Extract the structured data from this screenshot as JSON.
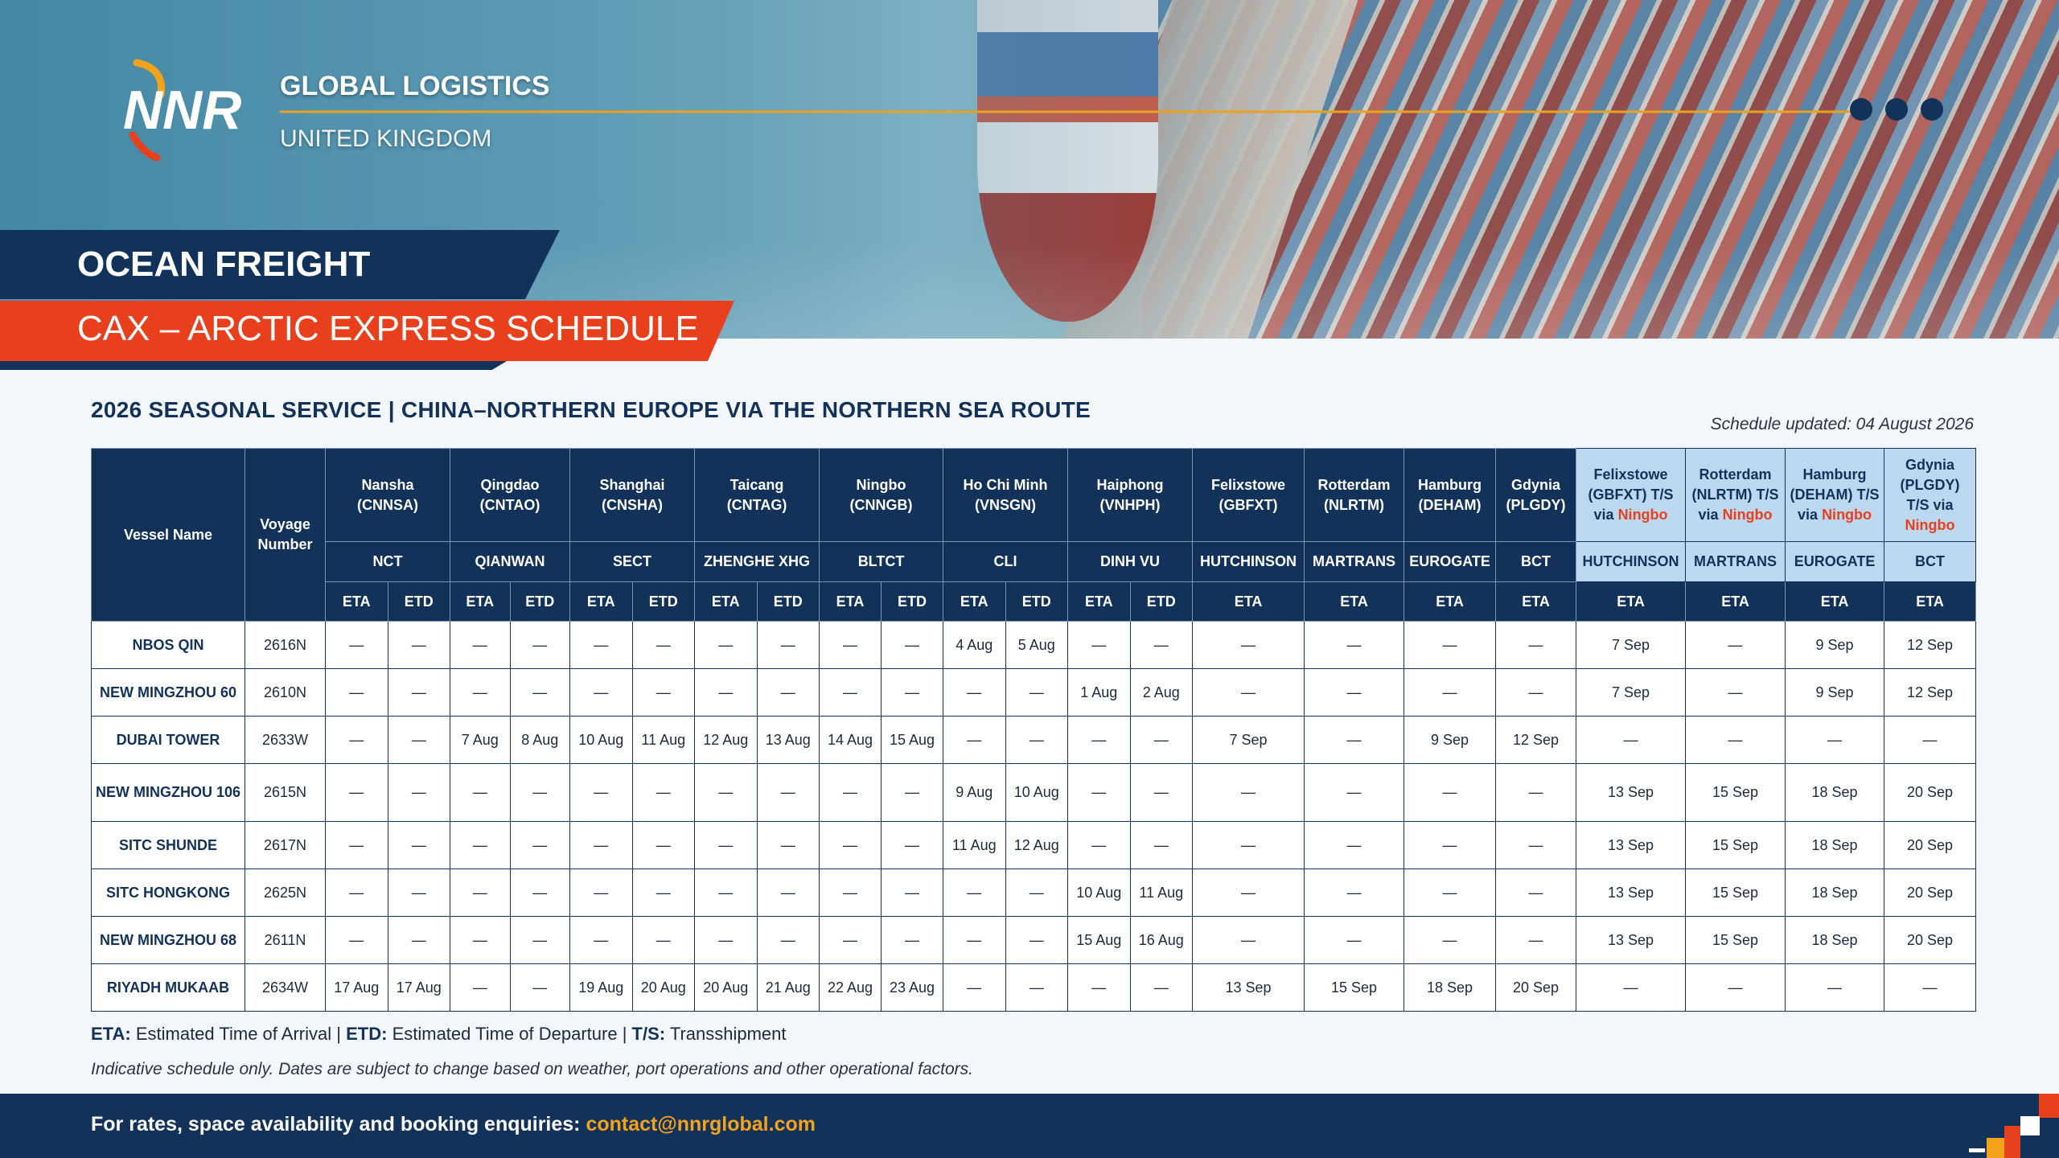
{
  "header": {
    "logo": "NNR",
    "title": "GLOBAL LOGISTICS",
    "subtitle": "UNITED KINGDOM"
  },
  "banner": {
    "service": "OCEAN FREIGHT",
    "schedule": "CAX – ARCTIC EXPRESS SCHEDULE"
  },
  "heading": "2026 SEASONAL SERVICE | CHINA–NORTHERN EUROPE VIA THE NORTHERN SEA ROUTE",
  "updated": "Schedule updated: 04 August 2026",
  "table": {
    "vessel_header": "Vessel Name",
    "voyage_header": "Voyage Number",
    "ports": [
      {
        "name": "Nansha",
        "code": "(CNNSA)",
        "terminal": "NCT",
        "times": [
          "ETA",
          "ETD"
        ]
      },
      {
        "name": "Qingdao",
        "code": "(CNTAO)",
        "terminal": "QIANWAN",
        "times": [
          "ETA",
          "ETD"
        ]
      },
      {
        "name": "Shanghai",
        "code": "(CNSHA)",
        "terminal": "SECT",
        "times": [
          "ETA",
          "ETD"
        ]
      },
      {
        "name": "Taicang",
        "code": "(CNTAG)",
        "terminal": "ZHENGHE XHG",
        "times": [
          "ETA",
          "ETD"
        ]
      },
      {
        "name": "Ningbo",
        "code": "(CNNGB)",
        "terminal": "BLTCT",
        "times": [
          "ETA",
          "ETD"
        ]
      },
      {
        "name": "Ho Chi Minh",
        "code": "(VNSGN)",
        "terminal": "CLI",
        "times": [
          "ETA",
          "ETD"
        ]
      },
      {
        "name": "Haiphong",
        "code": "(VNHPH)",
        "terminal": "DINH VU",
        "times": [
          "ETA",
          "ETD"
        ]
      },
      {
        "name": "Felixstowe",
        "code": "(GBFXT)",
        "terminal": "HUTCHINSON",
        "times": [
          "ETA"
        ]
      },
      {
        "name": "Rotterdam",
        "code": "(NLRTM)",
        "terminal": "MARTRANS",
        "times": [
          "ETA"
        ]
      },
      {
        "name": "Hamburg",
        "code": "(DEHAM)",
        "terminal": "EUROGATE",
        "times": [
          "ETA"
        ]
      },
      {
        "name": "Gdynia",
        "code": "(PLGDY)",
        "terminal": "BCT",
        "times": [
          "ETA"
        ]
      },
      {
        "name": "Felixstowe",
        "code": "(GBFXT)",
        "via": "T/S via",
        "hub": "Ningbo",
        "terminal": "HUTCHINSON",
        "times": [
          "ETA"
        ]
      },
      {
        "name": "Rotterdam",
        "code": "(NLRTM)",
        "via": "T/S via",
        "hub": "Ningbo",
        "terminal": "MARTRANS",
        "times": [
          "ETA"
        ]
      },
      {
        "name": "Hamburg",
        "code": "(DEHAM)",
        "via": "T/S via",
        "hub": "Ningbo",
        "terminal": "EUROGATE",
        "times": [
          "ETA"
        ]
      },
      {
        "name": "Gdynia",
        "code": "(PLGDY)",
        "via": "T/S via",
        "hub": "Ningbo",
        "terminal": "BCT",
        "times": [
          "ETA"
        ]
      }
    ],
    "rows": [
      {
        "vessel": "NBOS QIN",
        "voyage": "2616N",
        "cells": [
          "—",
          "—",
          "—",
          "—",
          "—",
          "—",
          "—",
          "—",
          "—",
          "—",
          "4 Aug",
          "5 Aug",
          "—",
          "—",
          "—",
          "—",
          "—",
          "—",
          "7 Sep",
          "—",
          "9 Sep",
          "12 Sep"
        ]
      },
      {
        "vessel": "NEW MINGZHOU 60",
        "voyage": "2610N",
        "cells": [
          "—",
          "—",
          "—",
          "—",
          "—",
          "—",
          "—",
          "—",
          "—",
          "—",
          "—",
          "—",
          "1 Aug",
          "2 Aug",
          "—",
          "—",
          "—",
          "—",
          "7 Sep",
          "—",
          "9 Sep",
          "12 Sep"
        ]
      },
      {
        "vessel": "DUBAI TOWER",
        "voyage": "2633W",
        "cells": [
          "—",
          "—",
          "7 Aug",
          "8 Aug",
          "10 Aug",
          "11 Aug",
          "12 Aug",
          "13 Aug",
          "14 Aug",
          "15 Aug",
          "—",
          "—",
          "—",
          "—",
          "7 Sep",
          "—",
          "9 Sep",
          "12 Sep",
          "—",
          "—",
          "—",
          "—"
        ]
      },
      {
        "vessel": "NEW MINGZHOU 106",
        "voyage": "2615N",
        "cells": [
          "—",
          "—",
          "—",
          "—",
          "—",
          "—",
          "—",
          "—",
          "—",
          "—",
          "9 Aug",
          "10 Aug",
          "—",
          "—",
          "—",
          "—",
          "—",
          "—",
          "13 Sep",
          "15 Sep",
          "18 Sep",
          "20 Sep"
        ]
      },
      {
        "vessel": "SITC SHUNDE",
        "voyage": "2617N",
        "cells": [
          "—",
          "—",
          "—",
          "—",
          "—",
          "—",
          "—",
          "—",
          "—",
          "—",
          "11 Aug",
          "12 Aug",
          "—",
          "—",
          "—",
          "—",
          "—",
          "—",
          "13 Sep",
          "15 Sep",
          "18 Sep",
          "20 Sep"
        ]
      },
      {
        "vessel": "SITC HONGKONG",
        "voyage": "2625N",
        "cells": [
          "—",
          "—",
          "—",
          "—",
          "—",
          "—",
          "—",
          "—",
          "—",
          "—",
          "—",
          "—",
          "10 Aug",
          "11 Aug",
          "—",
          "—",
          "—",
          "—",
          "13 Sep",
          "15 Sep",
          "18 Sep",
          "20 Sep"
        ]
      },
      {
        "vessel": "NEW MINGZHOU 68",
        "voyage": "2611N",
        "cells": [
          "—",
          "—",
          "—",
          "—",
          "—",
          "—",
          "—",
          "—",
          "—",
          "—",
          "—",
          "—",
          "15 Aug",
          "16 Aug",
          "—",
          "—",
          "—",
          "—",
          "13 Sep",
          "15 Sep",
          "18 Sep",
          "20 Sep"
        ]
      },
      {
        "vessel": "RIYADH MUKAAB",
        "voyage": "2634W",
        "cells": [
          "17 Aug",
          "17 Aug",
          "—",
          "—",
          "19 Aug",
          "20 Aug",
          "20 Aug",
          "21 Aug",
          "22 Aug",
          "23 Aug",
          "—",
          "—",
          "—",
          "—",
          "13 Sep",
          "15 Sep",
          "18 Sep",
          "20 Sep",
          "—",
          "—",
          "—",
          "—"
        ]
      }
    ]
  },
  "legend": {
    "separator": "|",
    "items": [
      {
        "abbr": "ETA:",
        "text": "Estimated Time of Arrival"
      },
      {
        "abbr": "ETD:",
        "text": "Estimated Time of Departure"
      },
      {
        "abbr": "T/S:",
        "text": "Transshipment"
      }
    ]
  },
  "note": "Indicative schedule only. Dates are subject to change based on weather, port operations and other operational factors.",
  "footer": {
    "text": "For rates, space availability and booking enquiries:",
    "email": "contact@nnrglobal.com"
  }
}
